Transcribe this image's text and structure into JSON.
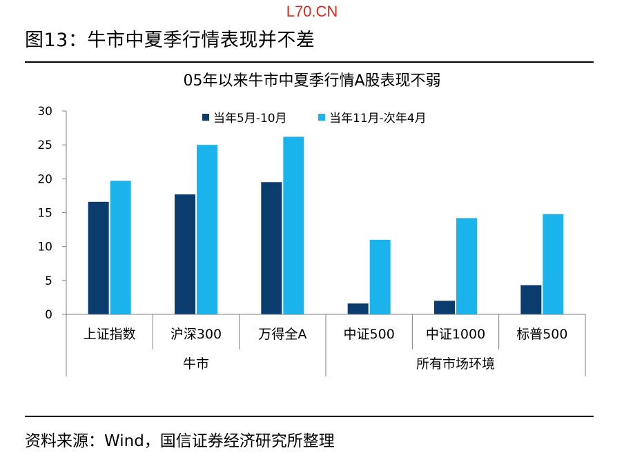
{
  "watermark": "L70.CN",
  "figure_title": "图13：牛市中夏季行情表现并不差",
  "source_note": "资料来源：Wind，国信证券经济研究所整理",
  "chart_data": {
    "type": "bar",
    "title": "05年以来牛市中夏季行情A股表现不弱",
    "categories": [
      "上证指数",
      "沪深300",
      "万得全A",
      "中证500",
      "中证1000",
      "标普500"
    ],
    "groups": [
      {
        "label": "牛市",
        "categories": [
          "上证指数",
          "沪深300",
          "万得全A"
        ]
      },
      {
        "label": "所有市场环境",
        "categories": [
          "中证500",
          "中证1000",
          "标普500"
        ]
      }
    ],
    "series": [
      {
        "name": "当年5月-10月",
        "color": "#0a3c6e",
        "values": [
          16.6,
          17.7,
          19.5,
          1.6,
          2.0,
          4.3
        ]
      },
      {
        "name": "当年11月-次年4月",
        "color": "#1ab3ec",
        "values": [
          19.7,
          25.0,
          26.2,
          11.0,
          14.2,
          14.8
        ]
      }
    ],
    "ylim": [
      0,
      30
    ],
    "yticks": [
      "0",
      "5",
      "10",
      "15",
      "20",
      "25",
      "30"
    ],
    "legend_position": "top-right",
    "grid": false
  }
}
